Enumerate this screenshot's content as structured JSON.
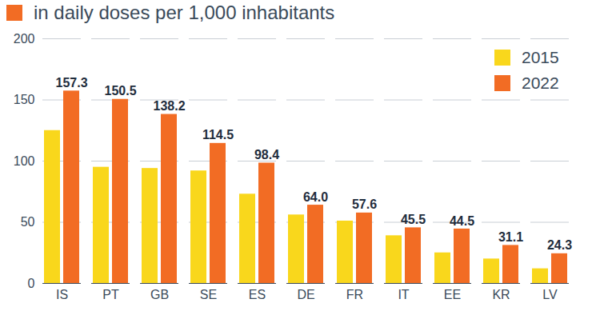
{
  "chart_data": {
    "type": "bar",
    "subtitle": "in daily doses per 1,000 inhabitants",
    "categories": [
      "IS",
      "PT",
      "GB",
      "SE",
      "ES",
      "DE",
      "FR",
      "IT",
      "EE",
      "KR",
      "LV"
    ],
    "series": [
      {
        "name": "2015",
        "color": "#f9d71c",
        "values": [
          125,
          95,
          94,
          92,
          73,
          56,
          51,
          39,
          25,
          20,
          12
        ]
      },
      {
        "name": "2022",
        "color": "#f26c24",
        "data_labels": true,
        "values": [
          157.3,
          150.5,
          138.2,
          114.5,
          98.4,
          64.0,
          57.6,
          45.5,
          44.5,
          31.1,
          24.3
        ],
        "value_labels": [
          "157.3",
          "150.5",
          "138.2",
          "114.5",
          "98.4",
          "64.0",
          "57.6",
          "45.5",
          "44.5",
          "31.1",
          "24.3"
        ]
      }
    ],
    "ylim": [
      0,
      200
    ],
    "yticks": [
      0,
      50,
      100,
      150,
      200
    ],
    "grid": true,
    "legend": "upper right"
  }
}
